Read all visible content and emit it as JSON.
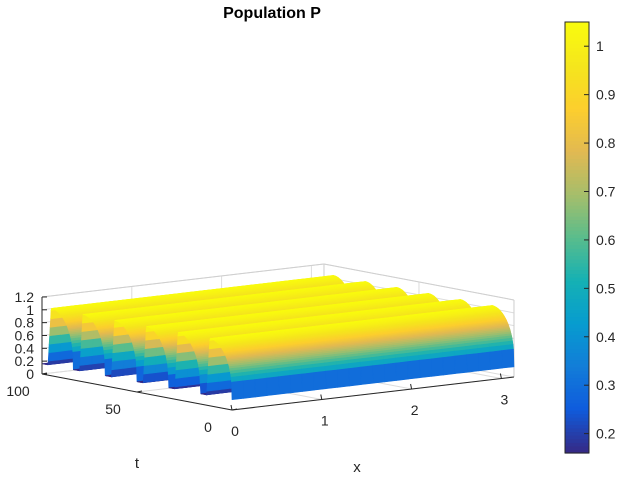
{
  "chart_data": {
    "type": "surface",
    "title": "Population P",
    "xlabel": "x",
    "ylabel": "t",
    "zlabel": "",
    "xlim": [
      0,
      3.14
    ],
    "ylim": [
      0,
      100
    ],
    "zlim": [
      0,
      1.2
    ],
    "xticks": [
      "0",
      "1",
      "2",
      "3"
    ],
    "yticks": [
      "0",
      "50",
      "100"
    ],
    "zticks": [
      "0",
      "0.2",
      "0.4",
      "0.6",
      "0.8",
      "1",
      "1.2"
    ],
    "grid": true,
    "colormap": "parula",
    "colorbar": {
      "range": [
        0.16,
        1.05
      ],
      "ticks": [
        "0.2",
        "0.3",
        "0.4",
        "0.5",
        "0.6",
        "0.7",
        "0.8",
        "0.9",
        "1"
      ]
    },
    "surface": {
      "description_values": {
        "oscillation_period_t": 16.7,
        "min_value": 0.16,
        "max_value": 1.05,
        "ridge_count": 7
      }
    }
  }
}
